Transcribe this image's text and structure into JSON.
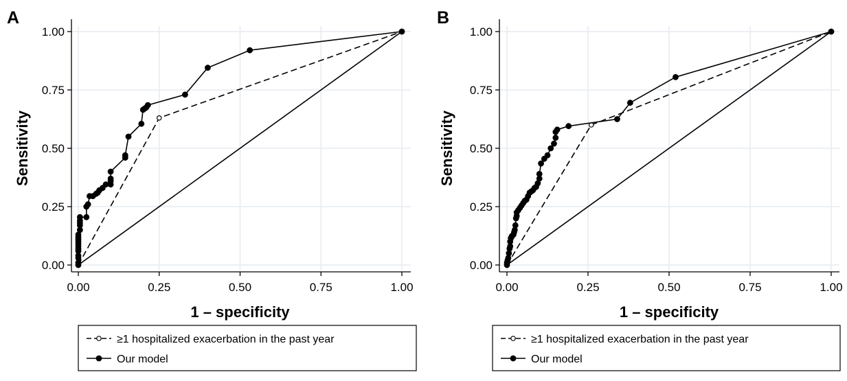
{
  "chart_data": [
    {
      "type": "line",
      "panel_label": "A",
      "xlabel": "1 – specificity",
      "ylabel": "Sensitivity",
      "xlim": [
        0,
        1
      ],
      "ylim": [
        0,
        1
      ],
      "xticks": [
        0,
        0.25,
        0.5,
        0.75,
        1
      ],
      "yticks": [
        0,
        0.25,
        0.5,
        0.75,
        1
      ],
      "xtick_labels": [
        "0.00",
        "0.25",
        "0.50",
        "0.75",
        "1.00"
      ],
      "ytick_labels": [
        "0.00",
        "0.25",
        "0.50",
        "0.75",
        "1.00"
      ],
      "grid": true,
      "legend_position": "bottom",
      "series": [
        {
          "name": "≥1 hospitalized exacerbation in the past year",
          "style": "dashed",
          "marker": "open-circle",
          "x": [
            0,
            0.25,
            1
          ],
          "y": [
            0,
            0.63,
            1
          ]
        },
        {
          "name": "Our model",
          "style": "solid",
          "marker": "filled-circle",
          "x": [
            0,
            0,
            0,
            0,
            0,
            0,
            0,
            0,
            0,
            0,
            0,
            0,
            0.005,
            0.005,
            0.005,
            0.005,
            0.005,
            0.025,
            0.025,
            0.03,
            0.035,
            0.045,
            0.055,
            0.06,
            0.065,
            0.075,
            0.085,
            0.1,
            0.1,
            0.1,
            0.1,
            0.145,
            0.145,
            0.155,
            0.195,
            0.2,
            0.205,
            0.21,
            0.215,
            0.33,
            0.4,
            0.53,
            1
          ],
          "y": [
            0,
            0.01,
            0.03,
            0.04,
            0.06,
            0.07,
            0.08,
            0.09,
            0.1,
            0.11,
            0.12,
            0.13,
            0.15,
            0.17,
            0.18,
            0.19,
            0.205,
            0.205,
            0.25,
            0.26,
            0.295,
            0.295,
            0.305,
            0.31,
            0.32,
            0.33,
            0.345,
            0.345,
            0.36,
            0.37,
            0.4,
            0.46,
            0.47,
            0.55,
            0.605,
            0.665,
            0.67,
            0.675,
            0.685,
            0.73,
            0.845,
            0.92,
            1
          ]
        },
        {
          "name": "",
          "style": "solid",
          "marker": "none",
          "x": [
            0,
            1
          ],
          "y": [
            0,
            1
          ]
        }
      ]
    },
    {
      "type": "line",
      "panel_label": "B",
      "xlabel": "1 – specificity",
      "ylabel": "Sensitivity",
      "xlim": [
        0,
        1
      ],
      "ylim": [
        0,
        1
      ],
      "xticks": [
        0,
        0.25,
        0.5,
        0.75,
        1
      ],
      "yticks": [
        0,
        0.25,
        0.5,
        0.75,
        1
      ],
      "xtick_labels": [
        "0.00",
        "0.25",
        "0.50",
        "0.75",
        "1.00"
      ],
      "ytick_labels": [
        "0.00",
        "0.25",
        "0.50",
        "0.75",
        "1.00"
      ],
      "grid": true,
      "legend_position": "bottom",
      "series": [
        {
          "name": "≥1 hospitalized exacerbation in the past year",
          "style": "dashed",
          "marker": "open-circle",
          "x": [
            0,
            0.26,
            1
          ],
          "y": [
            0,
            0.6,
            1
          ]
        },
        {
          "name": "Our model",
          "style": "solid",
          "marker": "filled-circle",
          "x": [
            0,
            0,
            0.002,
            0.004,
            0.006,
            0.008,
            0.01,
            0.01,
            0.012,
            0.014,
            0.016,
            0.02,
            0.022,
            0.024,
            0.026,
            0.028,
            0.03,
            0.03,
            0.035,
            0.04,
            0.045,
            0.05,
            0.055,
            0.06,
            0.065,
            0.07,
            0.075,
            0.08,
            0.085,
            0.09,
            0.095,
            0.1,
            0.1,
            0.105,
            0.115,
            0.125,
            0.135,
            0.145,
            0.15,
            0.15,
            0.155,
            0.19,
            0.34,
            0.38,
            0.52,
            1
          ],
          "y": [
            0,
            0.01,
            0.02,
            0.03,
            0.05,
            0.07,
            0.08,
            0.1,
            0.115,
            0.12,
            0.125,
            0.13,
            0.14,
            0.15,
            0.17,
            0.2,
            0.21,
            0.225,
            0.235,
            0.245,
            0.255,
            0.265,
            0.275,
            0.28,
            0.295,
            0.31,
            0.315,
            0.32,
            0.33,
            0.335,
            0.35,
            0.37,
            0.39,
            0.435,
            0.455,
            0.47,
            0.5,
            0.52,
            0.545,
            0.57,
            0.58,
            0.595,
            0.625,
            0.695,
            0.805,
            1
          ]
        },
        {
          "name": "",
          "style": "solid",
          "marker": "none",
          "x": [
            0,
            1
          ],
          "y": [
            0,
            1
          ]
        }
      ]
    }
  ]
}
